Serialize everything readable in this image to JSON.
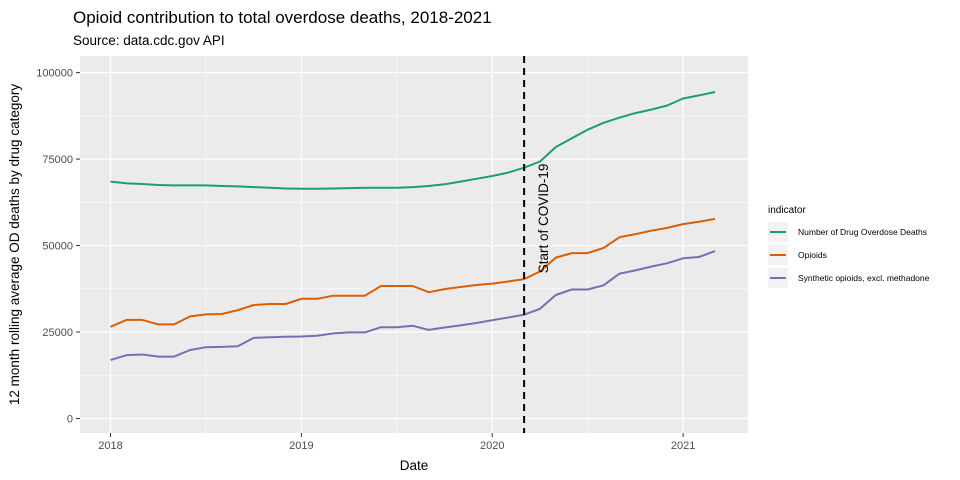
{
  "chart_data": {
    "type": "line",
    "title": "Opioid contribution to total overdose deaths, 2018-2021",
    "subtitle": "Source: data.cdc.gov API",
    "xlabel": "Date",
    "ylabel": "12 month rolling average OD deaths by drug category",
    "x_ticks": [
      2018,
      2019,
      2020,
      2021
    ],
    "y_ticks": [
      0,
      25000,
      50000,
      75000,
      100000
    ],
    "xlim": [
      2017.84,
      2021.34
    ],
    "ylim": [
      -4200,
      104800
    ],
    "grid": true,
    "legend_position": "right",
    "legend_title": "indicator",
    "annotation": {
      "label": "Start of COVID-19",
      "x": 2020.167
    },
    "x": [
      2018.0,
      2018.083,
      2018.167,
      2018.25,
      2018.333,
      2018.417,
      2018.5,
      2018.583,
      2018.667,
      2018.75,
      2018.833,
      2018.917,
      2019.0,
      2019.083,
      2019.167,
      2019.25,
      2019.333,
      2019.417,
      2019.5,
      2019.583,
      2019.667,
      2019.75,
      2019.833,
      2019.917,
      2020.0,
      2020.083,
      2020.167,
      2020.25,
      2020.333,
      2020.417,
      2020.5,
      2020.583,
      2020.667,
      2020.75,
      2020.833,
      2020.917,
      2021.0,
      2021.083,
      2021.167
    ],
    "series": [
      {
        "name": "Number of Drug Overdose Deaths",
        "color": "#1b9e77",
        "values": [
          68500,
          68000,
          67800,
          67500,
          67400,
          67400,
          67400,
          67200,
          67100,
          66900,
          66700,
          66500,
          66400,
          66400,
          66500,
          66600,
          66700,
          66700,
          66700,
          66900,
          67200,
          67700,
          68500,
          69300,
          70100,
          71100,
          72500,
          74300,
          78500,
          81000,
          83500,
          85500,
          87000,
          88300,
          89300,
          90500,
          92500,
          93400,
          94400
        ]
      },
      {
        "name": "Opioids",
        "color": "#d95f02",
        "values": [
          26500,
          28500,
          28500,
          27200,
          27200,
          29500,
          30100,
          30200,
          31300,
          32800,
          33100,
          33100,
          34600,
          34600,
          35500,
          35500,
          35500,
          38300,
          38300,
          38300,
          36500,
          37400,
          38000,
          38600,
          39000,
          39600,
          40300,
          42500,
          46500,
          47800,
          47800,
          49300,
          52400,
          53300,
          54300,
          55100,
          56200,
          56900,
          57700
        ]
      },
      {
        "name": "Synthetic opioids, excl. methadone",
        "color": "#7570b3",
        "values": [
          16900,
          18300,
          18500,
          17900,
          17900,
          19800,
          20600,
          20700,
          20900,
          23300,
          23500,
          23600,
          23700,
          23900,
          24600,
          24900,
          24900,
          26400,
          26400,
          26800,
          25600,
          26300,
          26900,
          27600,
          28400,
          29200,
          30000,
          31700,
          35700,
          37300,
          37300,
          38500,
          41900,
          42800,
          43900,
          44900,
          46300,
          46700,
          48400
        ]
      }
    ]
  }
}
